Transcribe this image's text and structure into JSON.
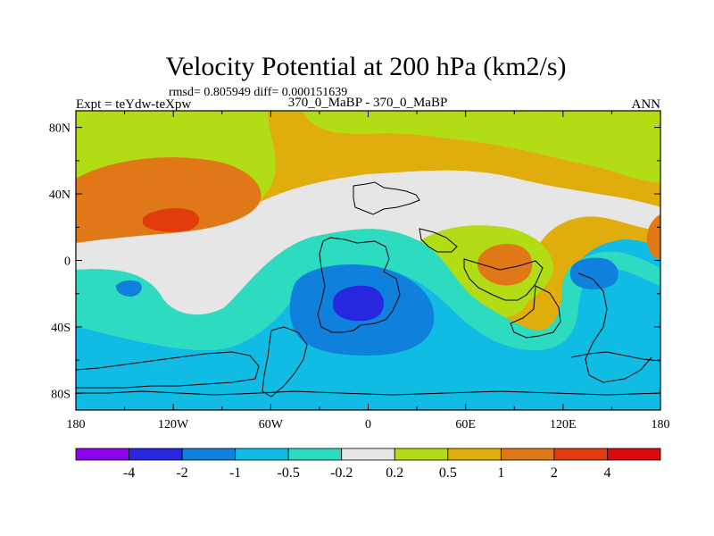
{
  "chart_data": {
    "type": "heatmap",
    "title": "Velocity Potential at 200 hPa (km2/s)",
    "stats": "rmsd= 0.805949 diff= 0.000151639",
    "subtitle_left": "Expt = teYdw-teXpw",
    "subtitle_center": "370_0_MaBP - 370_0_MaBP",
    "subtitle_right": "ANN",
    "x_ticks": [
      "180",
      "120W",
      "60W",
      "0",
      "60E",
      "120E",
      "180"
    ],
    "x_values": [
      -180,
      -120,
      -60,
      0,
      60,
      120,
      180
    ],
    "y_ticks": [
      "80N",
      "40N",
      "0",
      "40S",
      "80S"
    ],
    "y_values": [
      80,
      40,
      0,
      -40,
      -80
    ],
    "xlim": [
      -180,
      180
    ],
    "ylim": [
      -90,
      90
    ],
    "colorbar": {
      "labels": [
        "-4",
        "-2",
        "-1",
        "-0.5",
        "-0.2",
        "0.2",
        "0.5",
        "1",
        "2",
        "4"
      ],
      "colors": [
        "#8f00ef",
        "#2727e0",
        "#0f80dc",
        "#10bce4",
        "#2ddcc0",
        "#e6e6e6",
        "#b2dc14",
        "#e0ae0c",
        "#e07818",
        "#e03c0c",
        "#dc0a0a"
      ]
    },
    "regions": [
      {
        "name": "upper-positive-band",
        "level": "0.5 to 1",
        "color": "#e0ae0c"
      },
      {
        "name": "northern-light-green-band",
        "level": "0.2 to 0.5",
        "color": "#b2dc14"
      },
      {
        "name": "near-zero-white-band",
        "level": "-0.2 to 0.2",
        "color": "#e6e6e6"
      },
      {
        "name": "southern-light-blue-band",
        "level": "-1 to -0.5",
        "color": "#10bce4"
      },
      {
        "name": "north-pacific-high",
        "level": "1 to 2",
        "color": "#e07818"
      },
      {
        "name": "north-pacific-core",
        "level": "2 to 4",
        "color": "#e03c0c"
      },
      {
        "name": "eastern-edge-high",
        "level": "1 to 2",
        "color": "#e07818"
      },
      {
        "name": "indian-ocean-high",
        "level": "1 to 2",
        "color": "#e07818"
      },
      {
        "name": "tropical-teal-band",
        "level": "-0.5 to -0.2",
        "color": "#2ddcc0"
      },
      {
        "name": "atlantic-low",
        "level": "-2 to -1",
        "color": "#0f80dc"
      },
      {
        "name": "atlantic-low-core",
        "level": "-4 to -2",
        "color": "#2727e0"
      },
      {
        "name": "pacific-low",
        "level": "-2 to -1",
        "color": "#0f80dc"
      },
      {
        "name": "west-pacific-low",
        "level": "-2 to -1",
        "color": "#0f80dc"
      }
    ]
  }
}
